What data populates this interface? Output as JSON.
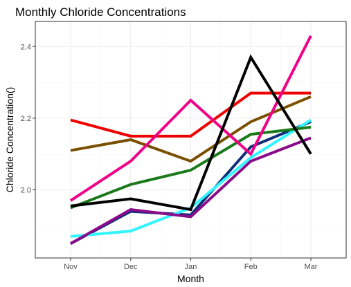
{
  "chart_data": {
    "type": "line",
    "title": "Monthly Chloride Concentrations",
    "xlabel": "Month",
    "ylabel": "Chloride Concentration()",
    "categories": [
      "Nov",
      "Dec",
      "Jan",
      "Feb",
      "Mar"
    ],
    "ylim": [
      1.81,
      2.47
    ],
    "yticks": [
      2.0,
      2.2,
      2.4
    ],
    "ytick_labels": [
      "2.0",
      "2.2",
      "2.4"
    ],
    "grid": true,
    "legend": "none",
    "series": [
      {
        "color": "#0d2f7a",
        "values": [
          1.85,
          1.94,
          1.93,
          2.12,
          2.19
        ]
      },
      {
        "color": "#33f5ff",
        "values": [
          1.87,
          1.885,
          1.95,
          2.09,
          2.195
        ]
      },
      {
        "color": "#7a5000",
        "values": [
          2.11,
          2.14,
          2.08,
          2.19,
          2.26
        ]
      },
      {
        "color": "#1a7a1a",
        "values": [
          1.95,
          2.015,
          2.055,
          2.155,
          2.175
        ]
      },
      {
        "color": "#8a0a8a",
        "values": [
          1.85,
          1.945,
          1.925,
          2.08,
          2.145
        ]
      },
      {
        "color": "#ef0000",
        "values": [
          2.195,
          2.15,
          2.15,
          2.27,
          2.27
        ]
      },
      {
        "color": "#f00088",
        "values": [
          1.97,
          2.08,
          2.25,
          2.1,
          2.43
        ]
      },
      {
        "color": "#000000",
        "values": [
          1.955,
          1.975,
          1.945,
          2.37,
          2.1
        ]
      }
    ]
  }
}
